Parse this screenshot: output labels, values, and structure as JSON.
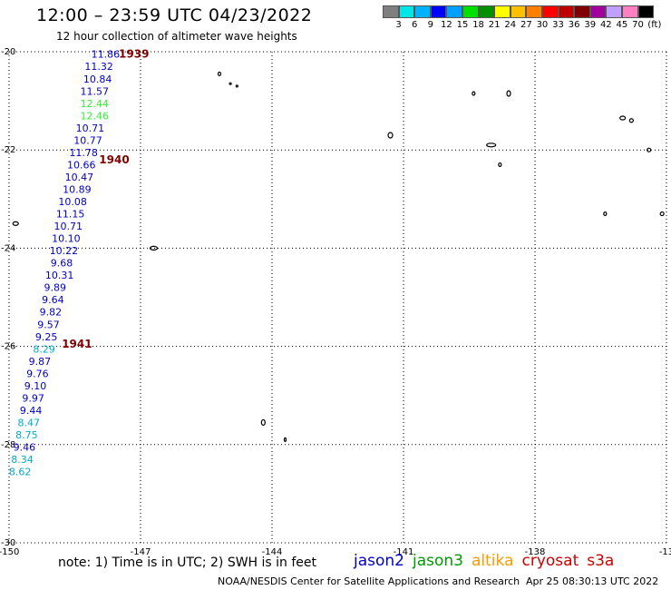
{
  "title": "12:00 – 23:59 UTC 04/23/2022",
  "subtitle": "12 hour collection of altimeter wave heights",
  "legend": {
    "unit": "(ft)",
    "colors": [
      "#7f7f7f",
      "#00e5e5",
      "#00b2ff",
      "#0000ff",
      "#00a0ff",
      "#00e000",
      "#009000",
      "#ffff00",
      "#ffc000",
      "#ff8000",
      "#ff0000",
      "#c00000",
      "#800000",
      "#a000a0",
      "#c0a0ff",
      "#ff80c0",
      "#000000"
    ],
    "labels": [
      "3",
      "6",
      "9",
      "12",
      "15",
      "18",
      "21",
      "24",
      "27",
      "30",
      "33",
      "36",
      "39",
      "42",
      "45",
      "70"
    ]
  },
  "map": {
    "lon_labels": [
      "-150",
      "-147",
      "-144",
      "-141",
      "-138",
      "-13"
    ],
    "lat_labels": [
      "-20",
      "-22",
      "-24",
      "-26",
      "-28",
      "-30"
    ],
    "lon_range": [
      -150,
      -135
    ],
    "lat_range": [
      -30,
      -20
    ]
  },
  "readings": [
    {
      "v": "11.86",
      "lon": -147.8,
      "lat": -20.05,
      "c": "#0000cc"
    },
    {
      "v": "11.32",
      "lon": -147.95,
      "lat": -20.3,
      "c": "#0000cc"
    },
    {
      "v": "10.84",
      "lon": -147.98,
      "lat": -20.55,
      "c": "#0000cc"
    },
    {
      "v": "11.57",
      "lon": -148.05,
      "lat": -20.8,
      "c": "#0000cc"
    },
    {
      "v": "12.44",
      "lon": -148.05,
      "lat": -21.05,
      "c": "#33ee33"
    },
    {
      "v": "12.46",
      "lon": -148.05,
      "lat": -21.3,
      "c": "#33ee33"
    },
    {
      "v": "10.71",
      "lon": -148.15,
      "lat": -21.55,
      "c": "#0000cc"
    },
    {
      "v": "10.77",
      "lon": -148.2,
      "lat": -21.8,
      "c": "#0000cc"
    },
    {
      "v": "11.78",
      "lon": -148.3,
      "lat": -22.05,
      "c": "#0000cc"
    },
    {
      "v": "10.66",
      "lon": -148.35,
      "lat": -22.3,
      "c": "#0000cc"
    },
    {
      "v": "10.47",
      "lon": -148.4,
      "lat": -22.55,
      "c": "#0000cc"
    },
    {
      "v": "10.89",
      "lon": -148.45,
      "lat": -22.8,
      "c": "#0000cc"
    },
    {
      "v": "10.08",
      "lon": -148.55,
      "lat": -23.05,
      "c": "#0000cc"
    },
    {
      "v": "11.15",
      "lon": -148.6,
      "lat": -23.3,
      "c": "#0000cc"
    },
    {
      "v": "10.71",
      "lon": -148.65,
      "lat": -23.55,
      "c": "#0000cc"
    },
    {
      "v": "10.10",
      "lon": -148.7,
      "lat": -23.8,
      "c": "#0000cc"
    },
    {
      "v": "10.22",
      "lon": -148.75,
      "lat": -24.05,
      "c": "#0000cc"
    },
    {
      "v": "9.68",
      "lon": -148.8,
      "lat": -24.3,
      "c": "#0000cc"
    },
    {
      "v": "10.31",
      "lon": -148.85,
      "lat": -24.55,
      "c": "#0000cc"
    },
    {
      "v": "9.89",
      "lon": -148.95,
      "lat": -24.8,
      "c": "#0000cc"
    },
    {
      "v": "9.64",
      "lon": -149.0,
      "lat": -25.05,
      "c": "#0000cc"
    },
    {
      "v": "9.82",
      "lon": -149.05,
      "lat": -25.3,
      "c": "#0000cc"
    },
    {
      "v": "9.57",
      "lon": -149.1,
      "lat": -25.55,
      "c": "#0000cc"
    },
    {
      "v": "9.25",
      "lon": -149.15,
      "lat": -25.8,
      "c": "#0000cc"
    },
    {
      "v": "8.29",
      "lon": -149.2,
      "lat": -26.05,
      "c": "#00aacc"
    },
    {
      "v": "9.87",
      "lon": -149.3,
      "lat": -26.3,
      "c": "#0000cc"
    },
    {
      "v": "9.76",
      "lon": -149.35,
      "lat": -26.55,
      "c": "#0000cc"
    },
    {
      "v": "9.10",
      "lon": -149.4,
      "lat": -26.8,
      "c": "#0000cc"
    },
    {
      "v": "9.97",
      "lon": -149.45,
      "lat": -27.05,
      "c": "#0000cc"
    },
    {
      "v": "9.44",
      "lon": -149.5,
      "lat": -27.3,
      "c": "#0000cc"
    },
    {
      "v": "8.47",
      "lon": -149.55,
      "lat": -27.55,
      "c": "#00aacc"
    },
    {
      "v": "8.75",
      "lon": -149.6,
      "lat": -27.8,
      "c": "#00aacc"
    },
    {
      "v": "9.46",
      "lon": -149.65,
      "lat": -28.05,
      "c": "#0000cc"
    },
    {
      "v": "8.34",
      "lon": -149.7,
      "lat": -28.3,
      "c": "#00aacc"
    },
    {
      "v": "8.62",
      "lon": -149.75,
      "lat": -28.55,
      "c": "#00aacc"
    }
  ],
  "times": [
    {
      "t": "1939",
      "lon": -147.15,
      "lat": -20.05
    },
    {
      "t": "1940",
      "lon": -147.6,
      "lat": -22.2
    },
    {
      "t": "1941",
      "lon": -148.45,
      "lat": -25.95
    }
  ],
  "note": "note:  1) Time is in UTC;  2) SWH is in feet",
  "satellites": [
    {
      "name": "jason2",
      "color": "#0000cc"
    },
    {
      "name": "jason3",
      "color": "#009900"
    },
    {
      "name": "altika",
      "color": "#ff9900"
    },
    {
      "name": "cryosat",
      "color": "#cc0000"
    },
    {
      "name": "s3a",
      "color": "#cc0000"
    }
  ],
  "footer_left": "NOAA/NESDIS Center for Satellite Applications and Research",
  "footer_right": "Apr 25 08:30:13 UTC 2022"
}
